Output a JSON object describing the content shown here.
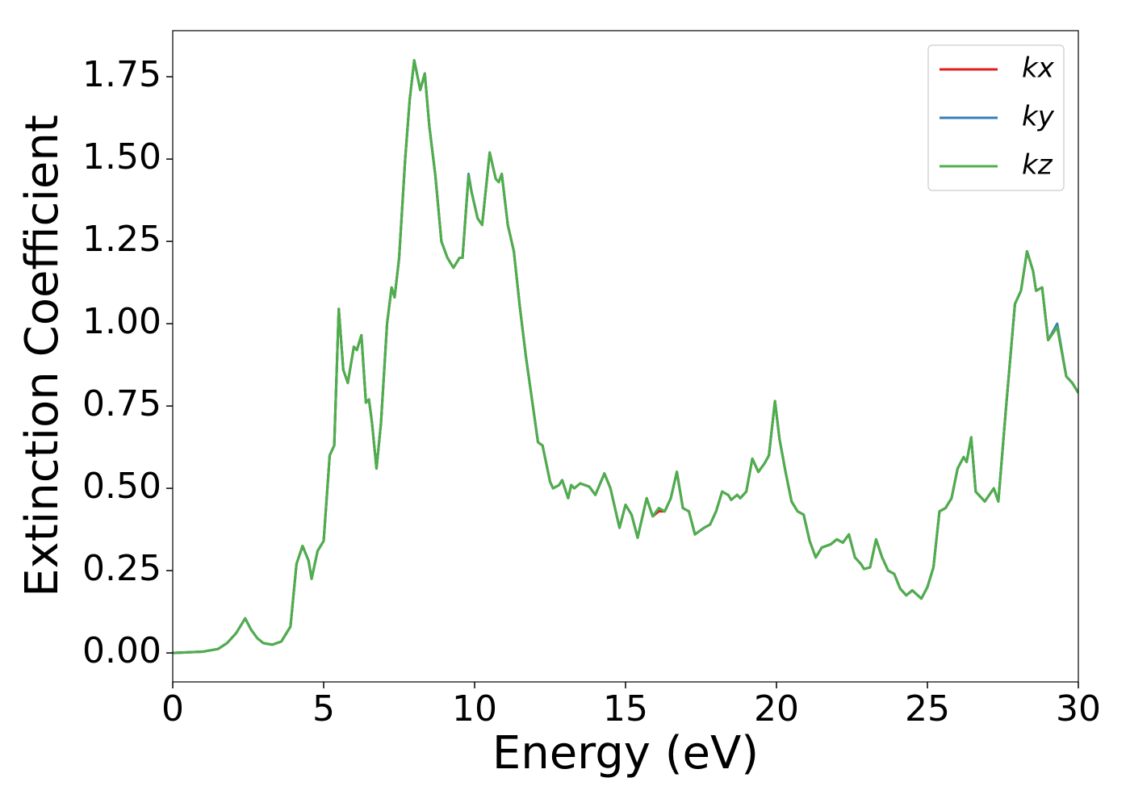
{
  "chart_data": {
    "type": "line",
    "x_label": "Energy (eV)",
    "y_label": "Extinction Coefficient",
    "xlim": [
      0,
      30
    ],
    "ylim": [
      -0.088,
      1.89
    ],
    "xticks": [
      0,
      5,
      10,
      15,
      20,
      25,
      30
    ],
    "yticks": [
      {
        "value": 0,
        "label": "0.00"
      },
      {
        "value": 0.25,
        "label": "0.25"
      },
      {
        "value": 0.5,
        "label": "0.50"
      },
      {
        "value": 0.75,
        "label": "0.75"
      },
      {
        "value": 1,
        "label": "1.00"
      },
      {
        "value": 1.25,
        "label": "1.25"
      },
      {
        "value": 1.5,
        "label": "1.50"
      },
      {
        "value": 1.75,
        "label": "1.75"
      }
    ],
    "legend": "upper right",
    "grid": false,
    "x": [
      0,
      1,
      1.5,
      1.8,
      2.1,
      2.4,
      2.6,
      2.8,
      3.0,
      3.3,
      3.6,
      3.9,
      4.1,
      4.3,
      4.5,
      4.6,
      4.8,
      5.0,
      5.2,
      5.35,
      5.5,
      5.65,
      5.8,
      6.0,
      6.1,
      6.25,
      6.4,
      6.5,
      6.6,
      6.75,
      6.9,
      7.1,
      7.25,
      7.35,
      7.5,
      7.7,
      7.85,
      8.0,
      8.2,
      8.35,
      8.5,
      8.7,
      8.9,
      9.1,
      9.3,
      9.5,
      9.6,
      9.8,
      9.9,
      10.1,
      10.25,
      10.5,
      10.7,
      10.8,
      10.9,
      11.1,
      11.3,
      11.5,
      11.7,
      11.9,
      12.1,
      12.25,
      12.5,
      12.6,
      12.8,
      12.9,
      13.1,
      13.2,
      13.3,
      13.5,
      13.8,
      14.0,
      14.3,
      14.5,
      14.8,
      15.0,
      15.2,
      15.4,
      15.7,
      15.9,
      16.1,
      16.3,
      16.5,
      16.7,
      16.9,
      17.1,
      17.3,
      17.6,
      17.8,
      18.0,
      18.2,
      18.4,
      18.5,
      18.7,
      18.8,
      19.0,
      19.2,
      19.4,
      19.6,
      19.75,
      19.95,
      20.1,
      20.3,
      20.5,
      20.7,
      20.9,
      21.1,
      21.3,
      21.5,
      21.8,
      22.0,
      22.2,
      22.4,
      22.6,
      22.8,
      22.9,
      23.1,
      23.3,
      23.5,
      23.7,
      23.9,
      24.1,
      24.3,
      24.5,
      24.8,
      25.0,
      25.2,
      25.4,
      25.6,
      25.8,
      26.0,
      26.2,
      26.3,
      26.45,
      26.6,
      26.9,
      27.2,
      27.35,
      27.6,
      27.9,
      28.1,
      28.3,
      28.5,
      28.6,
      28.8,
      29.0,
      29.3,
      29.6,
      29.8,
      30
    ],
    "series": [
      {
        "name": "kx",
        "color": "#e41a1c",
        "values": [
          0,
          0.004,
          0.012,
          0.03,
          0.06,
          0.105,
          0.07,
          0.045,
          0.03,
          0.025,
          0.035,
          0.08,
          0.27,
          0.325,
          0.28,
          0.225,
          0.31,
          0.34,
          0.6,
          0.63,
          1.045,
          0.86,
          0.82,
          0.93,
          0.92,
          0.965,
          0.76,
          0.77,
          0.7,
          0.56,
          0.7,
          1.0,
          1.11,
          1.08,
          1.2,
          1.5,
          1.68,
          1.8,
          1.71,
          1.76,
          1.6,
          1.45,
          1.25,
          1.2,
          1.17,
          1.2,
          1.2,
          1.45,
          1.4,
          1.32,
          1.3,
          1.52,
          1.44,
          1.43,
          1.455,
          1.3,
          1.22,
          1.05,
          0.9,
          0.77,
          0.64,
          0.63,
          0.52,
          0.5,
          0.51,
          0.525,
          0.47,
          0.51,
          0.5,
          0.515,
          0.505,
          0.48,
          0.545,
          0.5,
          0.38,
          0.45,
          0.42,
          0.35,
          0.47,
          0.415,
          0.43,
          0.43,
          0.47,
          0.55,
          0.44,
          0.43,
          0.36,
          0.38,
          0.39,
          0.43,
          0.49,
          0.48,
          0.465,
          0.48,
          0.47,
          0.49,
          0.59,
          0.55,
          0.575,
          0.6,
          0.765,
          0.65,
          0.55,
          0.46,
          0.43,
          0.42,
          0.34,
          0.29,
          0.32,
          0.33,
          0.345,
          0.335,
          0.36,
          0.29,
          0.27,
          0.255,
          0.26,
          0.345,
          0.29,
          0.25,
          0.24,
          0.195,
          0.175,
          0.19,
          0.165,
          0.2,
          0.26,
          0.43,
          0.44,
          0.47,
          0.56,
          0.595,
          0.58,
          0.655,
          0.49,
          0.46,
          0.5,
          0.46,
          0.74,
          1.06,
          1.1,
          1.22,
          1.16,
          1.1,
          1.11,
          0.95,
          0.99,
          0.84,
          0.82,
          0.79
        ]
      },
      {
        "name": "ky",
        "color": "#377eb8",
        "values": [
          0,
          0.004,
          0.012,
          0.03,
          0.06,
          0.105,
          0.07,
          0.045,
          0.03,
          0.025,
          0.035,
          0.08,
          0.27,
          0.325,
          0.28,
          0.225,
          0.31,
          0.34,
          0.6,
          0.63,
          1.045,
          0.86,
          0.82,
          0.93,
          0.92,
          0.965,
          0.76,
          0.77,
          0.7,
          0.56,
          0.7,
          1.0,
          1.11,
          1.08,
          1.2,
          1.5,
          1.68,
          1.8,
          1.71,
          1.76,
          1.6,
          1.45,
          1.25,
          1.2,
          1.17,
          1.2,
          1.2,
          1.455,
          1.4,
          1.32,
          1.3,
          1.52,
          1.44,
          1.43,
          1.455,
          1.3,
          1.22,
          1.05,
          0.9,
          0.77,
          0.64,
          0.63,
          0.52,
          0.5,
          0.51,
          0.525,
          0.47,
          0.51,
          0.5,
          0.515,
          0.505,
          0.48,
          0.545,
          0.5,
          0.38,
          0.45,
          0.42,
          0.35,
          0.47,
          0.415,
          0.44,
          0.43,
          0.47,
          0.55,
          0.44,
          0.43,
          0.36,
          0.38,
          0.39,
          0.43,
          0.49,
          0.48,
          0.465,
          0.48,
          0.47,
          0.49,
          0.59,
          0.55,
          0.575,
          0.6,
          0.765,
          0.65,
          0.55,
          0.46,
          0.43,
          0.42,
          0.34,
          0.29,
          0.32,
          0.33,
          0.345,
          0.335,
          0.36,
          0.29,
          0.27,
          0.255,
          0.26,
          0.345,
          0.29,
          0.25,
          0.24,
          0.195,
          0.175,
          0.19,
          0.165,
          0.2,
          0.26,
          0.43,
          0.44,
          0.47,
          0.56,
          0.595,
          0.58,
          0.655,
          0.49,
          0.46,
          0.5,
          0.46,
          0.74,
          1.06,
          1.1,
          1.22,
          1.16,
          1.1,
          1.11,
          0.95,
          1.0,
          0.84,
          0.82,
          0.79
        ]
      },
      {
        "name": "kz",
        "color": "#4daf4a",
        "values": [
          0,
          0.004,
          0.012,
          0.03,
          0.06,
          0.105,
          0.07,
          0.045,
          0.03,
          0.025,
          0.035,
          0.08,
          0.27,
          0.325,
          0.28,
          0.225,
          0.31,
          0.34,
          0.6,
          0.63,
          1.045,
          0.86,
          0.82,
          0.93,
          0.92,
          0.965,
          0.76,
          0.77,
          0.7,
          0.56,
          0.7,
          1.0,
          1.11,
          1.08,
          1.2,
          1.5,
          1.68,
          1.8,
          1.71,
          1.76,
          1.6,
          1.45,
          1.25,
          1.2,
          1.17,
          1.2,
          1.2,
          1.45,
          1.4,
          1.32,
          1.3,
          1.52,
          1.44,
          1.43,
          1.455,
          1.3,
          1.22,
          1.05,
          0.9,
          0.77,
          0.64,
          0.63,
          0.52,
          0.5,
          0.51,
          0.525,
          0.47,
          0.51,
          0.5,
          0.515,
          0.505,
          0.48,
          0.545,
          0.5,
          0.38,
          0.45,
          0.42,
          0.35,
          0.47,
          0.415,
          0.44,
          0.43,
          0.47,
          0.55,
          0.44,
          0.43,
          0.36,
          0.38,
          0.39,
          0.43,
          0.49,
          0.48,
          0.465,
          0.48,
          0.47,
          0.49,
          0.59,
          0.55,
          0.575,
          0.6,
          0.765,
          0.65,
          0.55,
          0.46,
          0.43,
          0.42,
          0.34,
          0.29,
          0.32,
          0.33,
          0.345,
          0.335,
          0.36,
          0.29,
          0.27,
          0.255,
          0.26,
          0.345,
          0.29,
          0.25,
          0.24,
          0.195,
          0.175,
          0.19,
          0.165,
          0.2,
          0.26,
          0.43,
          0.44,
          0.47,
          0.56,
          0.595,
          0.58,
          0.655,
          0.49,
          0.46,
          0.5,
          0.46,
          0.74,
          1.06,
          1.1,
          1.22,
          1.16,
          1.1,
          1.11,
          0.95,
          0.99,
          0.84,
          0.82,
          0.79
        ]
      }
    ]
  }
}
